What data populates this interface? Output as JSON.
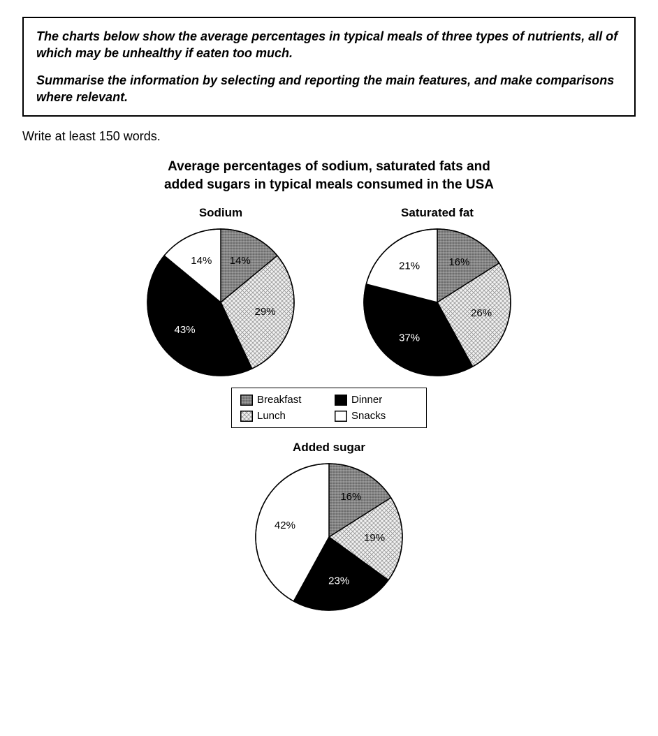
{
  "prompt": {
    "para1": "The charts below show the average percentages in typical meals of three types of nutrients, all of which may be unhealthy if eaten too much.",
    "para2": "Summarise the information by selecting and reporting the main features, and make comparisons where relevant."
  },
  "instruction": "Write at least 150 words.",
  "main_title_line1": "Average percentages of sodium, saturated fats and",
  "main_title_line2": "added sugars in typical meals consumed in the USA",
  "categories": [
    {
      "key": "breakfast",
      "label": "Breakfast",
      "fill_pattern": "grain",
      "color": "#6a6a6a"
    },
    {
      "key": "lunch",
      "label": "Lunch",
      "fill_pattern": "hatch",
      "color": "#cfcfcf"
    },
    {
      "key": "dinner",
      "label": "Dinner",
      "fill_pattern": "solid",
      "color": "#000000"
    },
    {
      "key": "snacks",
      "label": "Snacks",
      "fill_pattern": "none",
      "color": "#ffffff"
    }
  ],
  "charts": {
    "sodium": {
      "title": "Sodium",
      "type": "pie",
      "order": [
        "breakfast",
        "lunch",
        "dinner",
        "snacks"
      ],
      "values": {
        "breakfast": 14,
        "lunch": 29,
        "dinner": 43,
        "snacks": 14
      },
      "radius": 105,
      "stroke": "#000000",
      "stroke_width": 1.5,
      "label_fontsize": 15,
      "label_color_light": "#ffffff",
      "label_color_dark": "#000000"
    },
    "saturated_fat": {
      "title": "Saturated fat",
      "type": "pie",
      "order": [
        "breakfast",
        "lunch",
        "dinner",
        "snacks"
      ],
      "values": {
        "breakfast": 16,
        "lunch": 26,
        "dinner": 37,
        "snacks": 21
      },
      "radius": 105,
      "stroke": "#000000",
      "stroke_width": 1.5,
      "label_fontsize": 15,
      "label_color_light": "#ffffff",
      "label_color_dark": "#000000"
    },
    "added_sugar": {
      "title": "Added sugar",
      "type": "pie",
      "order": [
        "breakfast",
        "lunch",
        "dinner",
        "snacks"
      ],
      "values": {
        "breakfast": 16,
        "lunch": 19,
        "dinner": 23,
        "snacks": 42
      },
      "radius": 105,
      "stroke": "#000000",
      "stroke_width": 1.5,
      "label_fontsize": 15,
      "label_color_light": "#ffffff",
      "label_color_dark": "#000000"
    }
  },
  "legend_title": null
}
